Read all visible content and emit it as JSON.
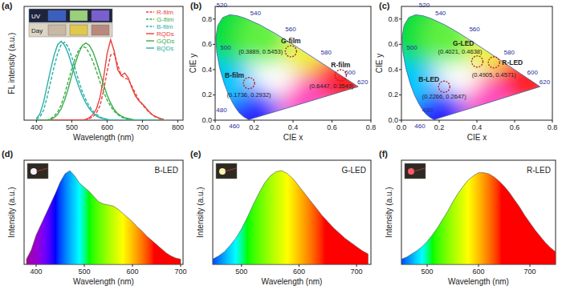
{
  "chart_data": [
    {
      "type": "line",
      "title": "(a)",
      "x_label": "Wavelength (nm)",
      "y_label": "FL intensity (a.u.)",
      "xlim": [
        365,
        815
      ],
      "ylim": [
        0,
        1.4
      ],
      "xticks": [
        400,
        500,
        600,
        700,
        800
      ],
      "tick_labels": "x",
      "legend": "upper right",
      "annotations": [
        "UV",
        "Day"
      ],
      "x": [
        400,
        410,
        420,
        430,
        440,
        450,
        460,
        470,
        480,
        490,
        500,
        510,
        520,
        530,
        540,
        550,
        560,
        570,
        580,
        590,
        600,
        610,
        620,
        630,
        640,
        650,
        660,
        670,
        680,
        690,
        700,
        710,
        720,
        730,
        740,
        750,
        760
      ],
      "series": [
        {
          "name": "R-film",
          "color": "#e8413c",
          "line_style": "dashed",
          "values": [
            0,
            0,
            0,
            0,
            0,
            0,
            0,
            0,
            0,
            0,
            0,
            0,
            0,
            0,
            0,
            0.02,
            0.04,
            0.09,
            0.18,
            0.36,
            0.6,
            0.8,
            0.82,
            0.68,
            0.55,
            0.52,
            0.5,
            0.42,
            0.33,
            0.25,
            0.19,
            0.14,
            0.09,
            0.06,
            0.03,
            0.02,
            0.01
          ]
        },
        {
          "name": "G-film",
          "color": "#3cae4a",
          "line_style": "dashed",
          "values": [
            0,
            0,
            0,
            0,
            0.02,
            0.05,
            0.1,
            0.19,
            0.32,
            0.48,
            0.63,
            0.77,
            0.87,
            0.91,
            0.89,
            0.82,
            0.72,
            0.6,
            0.47,
            0.35,
            0.25,
            0.17,
            0.11,
            0.07,
            0.04,
            0.02,
            0.01,
            0,
            0,
            0,
            0,
            0,
            0,
            0,
            0,
            0,
            0
          ]
        },
        {
          "name": "B-film",
          "color": "#2ab0a8",
          "line_style": "dashed",
          "values": [
            0.01,
            0.04,
            0.12,
            0.28,
            0.47,
            0.66,
            0.82,
            0.93,
            0.96,
            0.9,
            0.78,
            0.63,
            0.48,
            0.35,
            0.25,
            0.17,
            0.11,
            0.07,
            0.04,
            0.02,
            0.01,
            0,
            0,
            0,
            0,
            0,
            0,
            0,
            0,
            0,
            0,
            0,
            0,
            0,
            0,
            0,
            0
          ]
        },
        {
          "name": "RQDs",
          "color": "#e8413c",
          "line_style": "solid",
          "values": [
            0,
            0,
            0,
            0,
            0,
            0,
            0,
            0,
            0,
            0,
            0,
            0,
            0,
            0,
            0.01,
            0.03,
            0.07,
            0.14,
            0.28,
            0.52,
            0.82,
            0.99,
            0.85,
            0.62,
            0.55,
            0.58,
            0.52,
            0.4,
            0.3,
            0.24,
            0.2,
            0.15,
            0.1,
            0.06,
            0.04,
            0.02,
            0.01
          ]
        },
        {
          "name": "GQDs",
          "color": "#3cae4a",
          "line_style": "solid",
          "values": [
            0,
            0,
            0,
            0,
            0.01,
            0.03,
            0.07,
            0.14,
            0.25,
            0.39,
            0.55,
            0.7,
            0.83,
            0.92,
            0.95,
            0.92,
            0.84,
            0.72,
            0.58,
            0.44,
            0.31,
            0.21,
            0.13,
            0.08,
            0.05,
            0.03,
            0.02,
            0.01,
            0,
            0,
            0,
            0,
            0,
            0,
            0,
            0,
            0
          ]
        },
        {
          "name": "BQDs",
          "color": "#2ab0a8",
          "line_style": "solid",
          "values": [
            0.02,
            0.08,
            0.22,
            0.42,
            0.62,
            0.8,
            0.93,
            0.97,
            0.92,
            0.82,
            0.68,
            0.54,
            0.41,
            0.3,
            0.21,
            0.14,
            0.09,
            0.05,
            0.03,
            0.02,
            0.01,
            0,
            0,
            0,
            0,
            0,
            0,
            0,
            0,
            0,
            0,
            0,
            0,
            0,
            0,
            0,
            0
          ]
        }
      ]
    },
    {
      "type": "scatter",
      "title": "(b)",
      "x_label": "CIE x",
      "y_label": "CIE y",
      "xlim": [
        0,
        0.8
      ],
      "ylim": [
        0,
        0.9
      ],
      "xticks": [
        {
          "value": 0,
          "label": "0.0"
        },
        0.2,
        0.4,
        0.6,
        0.8
      ],
      "yticks": [
        {
          "value": 0,
          "label": "0.0"
        },
        0.2,
        0.4,
        0.6,
        0.8
      ],
      "marker": "circle",
      "locus": {
        "wavelength": [
          380,
          420,
          440,
          450,
          460,
          470,
          475,
          480,
          485,
          490,
          495,
          500,
          505,
          510,
          515,
          520,
          525,
          530,
          540,
          550,
          560,
          570,
          580,
          590,
          600,
          610,
          620,
          640,
          700
        ],
        "x": [
          0.1741,
          0.1714,
          0.1644,
          0.1566,
          0.144,
          0.1241,
          0.1096,
          0.0913,
          0.0687,
          0.0454,
          0.0235,
          0.0082,
          0.0039,
          0.0139,
          0.0389,
          0.0743,
          0.1142,
          0.1547,
          0.2296,
          0.3016,
          0.3731,
          0.4441,
          0.5125,
          0.5752,
          0.627,
          0.6658,
          0.6915,
          0.719,
          0.7347
        ],
        "y": [
          0.005,
          0.0051,
          0.0109,
          0.0177,
          0.0297,
          0.0578,
          0.0868,
          0.1327,
          0.2007,
          0.295,
          0.4127,
          0.5384,
          0.6548,
          0.7502,
          0.812,
          0.8338,
          0.8262,
          0.8059,
          0.7543,
          0.6923,
          0.6245,
          0.5547,
          0.4866,
          0.4242,
          0.3725,
          0.334,
          0.3083,
          0.2809,
          0.2653
        ]
      },
      "locus_ticks": [
        460,
        480,
        500,
        520,
        540,
        560,
        580,
        600,
        620
      ],
      "series": [
        {
          "name": "G-film",
          "color": "#b22222",
          "x": [
            0.3889
          ],
          "values": [
            0.5453
          ],
          "value_labels": [
            "(0.3889, 0.5453)"
          ]
        },
        {
          "name": "R-film",
          "color": "#b22222",
          "x": [
            0.6447
          ],
          "values": [
            0.3549
          ],
          "value_labels": [
            "(0.6447, 0.3549)"
          ]
        },
        {
          "name": "B-film",
          "color": "#b22222",
          "x": [
            0.1736
          ],
          "values": [
            0.2932
          ],
          "value_labels": [
            "(0.1736, 0.2932)"
          ]
        }
      ]
    },
    {
      "type": "scatter",
      "title": "(c)",
      "x_label": "CIE x",
      "y_label": "CIE y",
      "xlim": [
        0,
        0.8
      ],
      "ylim": [
        0,
        0.9
      ],
      "xticks": [
        {
          "value": 0,
          "label": "0.0"
        },
        0.2,
        0.4,
        0.6,
        0.8
      ],
      "yticks": [
        {
          "value": 0,
          "label": "0.0"
        },
        0.2,
        0.4,
        0.6,
        0.8
      ],
      "marker": "circle",
      "locus": {
        "wavelength": [
          380,
          420,
          440,
          450,
          460,
          470,
          475,
          480,
          485,
          490,
          495,
          500,
          505,
          510,
          515,
          520,
          525,
          530,
          540,
          550,
          560,
          570,
          580,
          590,
          600,
          610,
          620,
          640,
          700
        ],
        "x": [
          0.1741,
          0.1714,
          0.1644,
          0.1566,
          0.144,
          0.1241,
          0.1096,
          0.0913,
          0.0687,
          0.0454,
          0.0235,
          0.0082,
          0.0039,
          0.0139,
          0.0389,
          0.0743,
          0.1142,
          0.1547,
          0.2296,
          0.3016,
          0.3731,
          0.4441,
          0.5125,
          0.5752,
          0.627,
          0.6658,
          0.6915,
          0.719,
          0.7347
        ],
        "y": [
          0.005,
          0.0051,
          0.0109,
          0.0177,
          0.0297,
          0.0578,
          0.0868,
          0.1327,
          0.2007,
          0.295,
          0.4127,
          0.5384,
          0.6548,
          0.7502,
          0.812,
          0.8338,
          0.8262,
          0.8059,
          0.7543,
          0.6923,
          0.6245,
          0.5547,
          0.4866,
          0.4242,
          0.3725,
          0.334,
          0.3083,
          0.2809,
          0.2653
        ]
      },
      "locus_ticks": [
        460,
        480,
        500,
        520,
        540,
        560,
        580,
        600,
        620
      ],
      "series": [
        {
          "name": "G-LED",
          "color": "#b22222",
          "x": [
            0.4021
          ],
          "values": [
            0.4638
          ],
          "value_labels": [
            "(0.4021, 0.4638)"
          ]
        },
        {
          "name": "R-LED",
          "color": "#b22222",
          "x": [
            0.4905
          ],
          "values": [
            0.4571
          ],
          "value_labels": [
            "(0.4905, 0.4571)"
          ]
        },
        {
          "name": "B-LED",
          "color": "#b22222",
          "x": [
            0.2266
          ],
          "values": [
            0.2647
          ],
          "value_labels": [
            "(0.2266, 0.2647)"
          ]
        }
      ]
    },
    {
      "type": "area",
      "title": "(d)",
      "x_label": "Wavelength (nm)",
      "y_label": "Intensity (a.u.)",
      "xlim": [
        375,
        705
      ],
      "ylim": [
        0,
        1
      ],
      "xticks": [
        400,
        500,
        600,
        700
      ],
      "tick_labels": "x",
      "legend": "upper right",
      "x": [
        380,
        390,
        400,
        410,
        420,
        430,
        440,
        450,
        460,
        470,
        480,
        490,
        500,
        510,
        520,
        530,
        540,
        550,
        560,
        570,
        580,
        590,
        600,
        610,
        620,
        630,
        640,
        650,
        660,
        670,
        680,
        690,
        700
      ],
      "series": [
        {
          "name": "B-LED",
          "color": "#555555",
          "values": [
            0.05,
            0.14,
            0.28,
            0.38,
            0.48,
            0.58,
            0.68,
            0.79,
            0.87,
            0.9,
            0.85,
            0.78,
            0.74,
            0.7,
            0.65,
            0.6,
            0.58,
            0.57,
            0.56,
            0.53,
            0.49,
            0.45,
            0.41,
            0.36,
            0.32,
            0.27,
            0.23,
            0.19,
            0.15,
            0.11,
            0.08,
            0.06,
            0.05
          ]
        }
      ]
    },
    {
      "type": "area",
      "title": "(e)",
      "x_label": "Wavelength (nm)",
      "y_label": "Intensity (a.u.)",
      "xlim": [
        450,
        725
      ],
      "ylim": [
        0,
        1
      ],
      "xticks": [
        500,
        600,
        700
      ],
      "tick_labels": "x",
      "legend": "upper right",
      "x": [
        450,
        460,
        470,
        480,
        490,
        500,
        510,
        520,
        530,
        540,
        550,
        560,
        570,
        580,
        590,
        600,
        610,
        620,
        630,
        640,
        650,
        660,
        670,
        680,
        690,
        700,
        710,
        720
      ],
      "series": [
        {
          "name": "G-LED",
          "color": "#555555",
          "values": [
            0.05,
            0.08,
            0.12,
            0.18,
            0.25,
            0.34,
            0.45,
            0.57,
            0.68,
            0.78,
            0.85,
            0.89,
            0.9,
            0.87,
            0.82,
            0.75,
            0.68,
            0.61,
            0.54,
            0.47,
            0.41,
            0.35,
            0.3,
            0.25,
            0.21,
            0.17,
            0.13,
            0.1
          ]
        }
      ]
    },
    {
      "type": "area",
      "title": "(f)",
      "x_label": "Wavelength (nm)",
      "y_label": "Intensity (a.u.)",
      "xlim": [
        450,
        750
      ],
      "ylim": [
        0,
        1
      ],
      "xticks": [
        500,
        600,
        700
      ],
      "tick_labels": "x",
      "legend": "upper right",
      "x": [
        450,
        460,
        470,
        480,
        490,
        500,
        510,
        520,
        530,
        540,
        550,
        560,
        570,
        580,
        590,
        600,
        610,
        620,
        630,
        640,
        650,
        660,
        670,
        680,
        690,
        700,
        710,
        720,
        730,
        740,
        750
      ],
      "series": [
        {
          "name": "R-LED",
          "color": "#555555",
          "values": [
            0.05,
            0.07,
            0.1,
            0.13,
            0.17,
            0.22,
            0.28,
            0.35,
            0.43,
            0.51,
            0.6,
            0.68,
            0.75,
            0.81,
            0.85,
            0.88,
            0.88,
            0.87,
            0.84,
            0.8,
            0.75,
            0.69,
            0.62,
            0.55,
            0.47,
            0.4,
            0.33,
            0.27,
            0.21,
            0.16,
            0.12
          ]
        }
      ]
    }
  ]
}
